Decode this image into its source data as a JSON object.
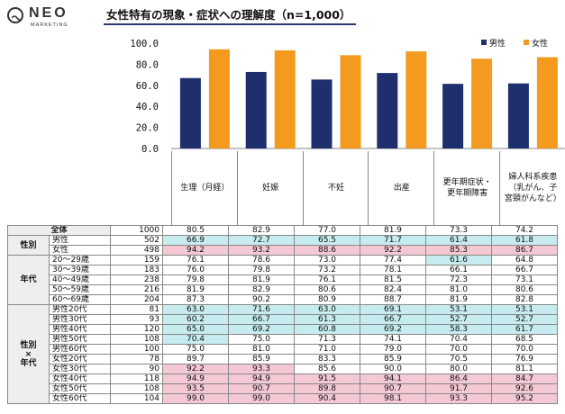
{
  "logo": {
    "brand": "NEO",
    "sub": "MARKETING"
  },
  "title": "女性特有の現象・症状への理解度（n=1,000）",
  "chart_data": {
    "type": "bar",
    "title": "女性特有の現象・症状への理解度（n=1,000）",
    "categories": [
      "生理（月経）",
      "妊娠",
      "不妊",
      "出産",
      "更年期症状・更年期障害",
      "婦人科系疾患（乳がん、子宮頸がんなど）"
    ],
    "category_lines": [
      [
        "生理（月経）"
      ],
      [
        "妊娠"
      ],
      [
        "不妊"
      ],
      [
        "出産"
      ],
      [
        "更年期症状・",
        "更年期障害"
      ],
      [
        "婦人科系疾患",
        "（乳がん、子",
        "宮頸がんなど）"
      ]
    ],
    "series": [
      {
        "name": "男性",
        "color": "#1f2f6e",
        "values": [
          66.9,
          72.7,
          65.5,
          71.7,
          61.4,
          61.8
        ]
      },
      {
        "name": "女性",
        "color": "#f39a1f",
        "values": [
          94.2,
          93.2,
          88.6,
          92.2,
          85.3,
          86.7
        ]
      }
    ],
    "ylim": [
      0,
      100
    ],
    "yticks": [
      "100.0",
      "80.0",
      "60.0",
      "40.0",
      "20.0",
      "0.0"
    ],
    "legend": "top-right",
    "xlabel": "",
    "ylabel": ""
  },
  "table": {
    "rows": [
      {
        "group": "全体",
        "label": "",
        "n": "1000",
        "values": [
          "80.5",
          "82.9",
          "77.0",
          "81.9",
          "73.3",
          "74.2"
        ],
        "marks": [
          "",
          "",
          "",
          "",
          "",
          ""
        ]
      },
      {
        "group": "性別",
        "label": "男性",
        "n": "502",
        "values": [
          "66.9",
          "72.7",
          "65.5",
          "71.7",
          "61.4",
          "61.8"
        ],
        "marks": [
          "lo",
          "lo",
          "lo",
          "lo",
          "lo",
          "lo"
        ]
      },
      {
        "group": "",
        "label": "女性",
        "n": "498",
        "values": [
          "94.2",
          "93.2",
          "88.6",
          "92.2",
          "85.3",
          "86.7"
        ],
        "marks": [
          "hi",
          "hi",
          "hi",
          "hi",
          "hi",
          "hi"
        ]
      },
      {
        "group": "年代",
        "label": "20～29歳",
        "n": "159",
        "values": [
          "76.1",
          "78.6",
          "73.0",
          "77.4",
          "61.6",
          "64.8"
        ],
        "marks": [
          "",
          "",
          "",
          "",
          "lo",
          ""
        ]
      },
      {
        "group": "",
        "label": "30～39歳",
        "n": "183",
        "values": [
          "76.0",
          "79.8",
          "73.2",
          "78.1",
          "66.1",
          "66.7"
        ],
        "marks": [
          "",
          "",
          "",
          "",
          "",
          ""
        ]
      },
      {
        "group": "",
        "label": "40～49歳",
        "n": "238",
        "values": [
          "79.8",
          "81.9",
          "76.1",
          "81.5",
          "72.3",
          "73.1"
        ],
        "marks": [
          "",
          "",
          "",
          "",
          "",
          ""
        ]
      },
      {
        "group": "",
        "label": "50～59歳",
        "n": "216",
        "values": [
          "81.9",
          "82.9",
          "80.6",
          "82.4",
          "81.0",
          "80.6"
        ],
        "marks": [
          "",
          "",
          "",
          "",
          "",
          ""
        ]
      },
      {
        "group": "",
        "label": "60～69歳",
        "n": "204",
        "values": [
          "87.3",
          "90.2",
          "80.9",
          "88.7",
          "81.9",
          "82.8"
        ],
        "marks": [
          "",
          "",
          "",
          "",
          "",
          ""
        ]
      },
      {
        "group": "性別×年代",
        "label": "男性20代",
        "n": "81",
        "values": [
          "63.0",
          "71.6",
          "63.0",
          "69.1",
          "53.1",
          "53.1"
        ],
        "marks": [
          "lo",
          "lo",
          "lo",
          "lo",
          "lo",
          "lo"
        ]
      },
      {
        "group": "",
        "label": "男性30代",
        "n": "93",
        "values": [
          "60.2",
          "66.7",
          "61.3",
          "66.7",
          "52.7",
          "52.7"
        ],
        "marks": [
          "lo",
          "lo",
          "lo",
          "lo",
          "lo",
          "lo"
        ]
      },
      {
        "group": "",
        "label": "男性40代",
        "n": "120",
        "values": [
          "65.0",
          "69.2",
          "60.8",
          "69.2",
          "58.3",
          "61.7"
        ],
        "marks": [
          "lo",
          "lo",
          "lo",
          "lo",
          "lo",
          "lo"
        ]
      },
      {
        "group": "",
        "label": "男性50代",
        "n": "108",
        "values": [
          "70.4",
          "75.0",
          "71.3",
          "74.1",
          "70.4",
          "68.5"
        ],
        "marks": [
          "lo",
          "",
          "",
          "",
          "",
          ""
        ]
      },
      {
        "group": "",
        "label": "男性60代",
        "n": "100",
        "values": [
          "75.0",
          "81.0",
          "71.0",
          "79.0",
          "70.0",
          "70.0"
        ],
        "marks": [
          "",
          "",
          "",
          "",
          "",
          ""
        ]
      },
      {
        "group": "",
        "label": "女性20代",
        "n": "78",
        "values": [
          "89.7",
          "85.9",
          "83.3",
          "85.9",
          "70.5",
          "76.9"
        ],
        "marks": [
          "",
          "",
          "",
          "",
          "",
          ""
        ]
      },
      {
        "group": "",
        "label": "女性30代",
        "n": "90",
        "values": [
          "92.2",
          "93.3",
          "85.6",
          "90.0",
          "80.0",
          "81.1"
        ],
        "marks": [
          "hi",
          "hi",
          "",
          "",
          "",
          ""
        ]
      },
      {
        "group": "",
        "label": "女性40代",
        "n": "118",
        "values": [
          "94.9",
          "94.9",
          "91.5",
          "94.1",
          "86.4",
          "84.7"
        ],
        "marks": [
          "hi",
          "hi",
          "hi",
          "hi",
          "hi",
          "hi"
        ]
      },
      {
        "group": "",
        "label": "女性50代",
        "n": "108",
        "values": [
          "93.5",
          "90.7",
          "89.8",
          "90.7",
          "91.7",
          "92.6"
        ],
        "marks": [
          "hi",
          "hi",
          "hi",
          "hi",
          "hi",
          "hi"
        ]
      },
      {
        "group": "",
        "label": "女性60代",
        "n": "104",
        "values": [
          "99.0",
          "99.0",
          "90.4",
          "98.1",
          "93.3",
          "95.2"
        ],
        "marks": [
          "hi",
          "hi",
          "hi",
          "hi",
          "hi",
          "hi"
        ]
      }
    ]
  }
}
